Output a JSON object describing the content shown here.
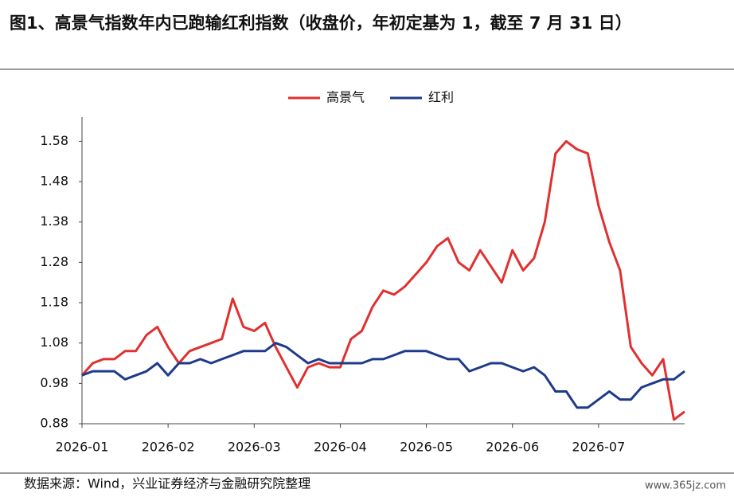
{
  "chart_data": {
    "type": "line",
    "title": "图1、高景气指数年内已跑输红利指数（收盘价，年初定基为 1，截至 7 月 31 日）",
    "source": "数据来源：Wind，兴业证券经济与金融研究院整理",
    "watermark": "www.365jz.com",
    "categories": [
      "2026-01",
      null,
      null,
      null,
      null,
      null,
      null,
      null,
      "2026-02",
      null,
      null,
      null,
      null,
      null,
      null,
      null,
      "2026-03",
      null,
      null,
      null,
      null,
      null,
      null,
      null,
      "2026-04",
      null,
      null,
      null,
      null,
      null,
      null,
      null,
      "2026-05",
      null,
      null,
      null,
      null,
      null,
      null,
      null,
      "2026-06",
      null,
      null,
      null,
      null,
      null,
      null,
      null,
      "2026-07",
      null,
      null,
      null,
      null,
      null,
      null,
      null,
      null
    ],
    "series": [
      {
        "name": "高景气",
        "color": "#e03030",
        "values": [
          1.0,
          1.03,
          1.04,
          1.04,
          1.06,
          1.06,
          1.1,
          1.12,
          1.07,
          1.03,
          1.06,
          1.07,
          1.08,
          1.09,
          1.19,
          1.12,
          1.11,
          1.13,
          1.07,
          1.02,
          0.97,
          1.02,
          1.03,
          1.02,
          1.02,
          1.09,
          1.11,
          1.17,
          1.21,
          1.2,
          1.22,
          1.25,
          1.28,
          1.32,
          1.34,
          1.28,
          1.26,
          1.31,
          1.27,
          1.23,
          1.31,
          1.26,
          1.29,
          1.38,
          1.55,
          1.58,
          1.56,
          1.55,
          1.42,
          1.33,
          1.26,
          1.07,
          1.03,
          1.0,
          1.04,
          0.89,
          0.91
        ]
      },
      {
        "name": "红利",
        "color": "#1f3a8a",
        "values": [
          1.0,
          1.01,
          1.01,
          1.01,
          0.99,
          1.0,
          1.01,
          1.03,
          1.0,
          1.03,
          1.03,
          1.04,
          1.03,
          1.04,
          1.05,
          1.06,
          1.06,
          1.06,
          1.08,
          1.07,
          1.05,
          1.03,
          1.04,
          1.03,
          1.03,
          1.03,
          1.03,
          1.04,
          1.04,
          1.05,
          1.06,
          1.06,
          1.06,
          1.05,
          1.04,
          1.04,
          1.01,
          1.02,
          1.03,
          1.03,
          1.02,
          1.01,
          1.02,
          1.0,
          0.96,
          0.96,
          0.92,
          0.92,
          0.94,
          0.96,
          0.94,
          0.94,
          0.97,
          0.98,
          0.99,
          0.99,
          1.01
        ]
      }
    ],
    "ylim": [
      0.88,
      1.64
    ],
    "yticks": [
      0.88,
      0.98,
      1.08,
      1.18,
      1.28,
      1.38,
      1.48,
      1.58
    ],
    "legend": "top"
  }
}
